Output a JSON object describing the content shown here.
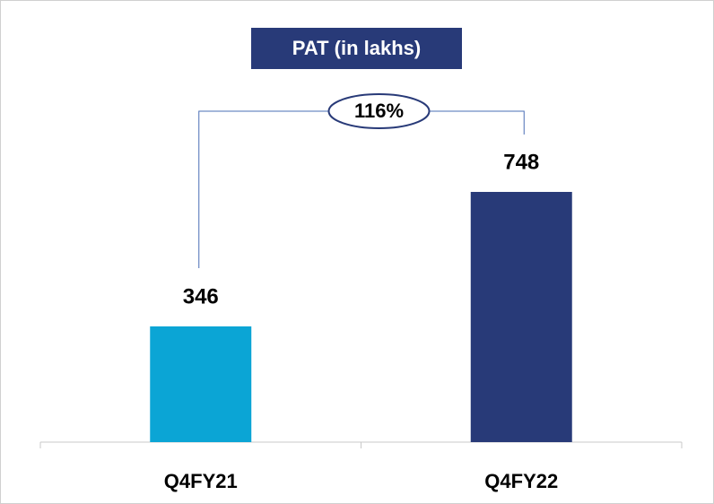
{
  "chart_data": {
    "type": "bar",
    "title": "PAT (in lakhs)",
    "categories": [
      "Q4FY21",
      "Q4FY22"
    ],
    "values": [
      346,
      748
    ],
    "colors": [
      "#0ba5d5",
      "#283a78"
    ],
    "ylim": [
      0,
      1000
    ],
    "annotations": [
      {
        "text": "116%"
      }
    ]
  }
}
